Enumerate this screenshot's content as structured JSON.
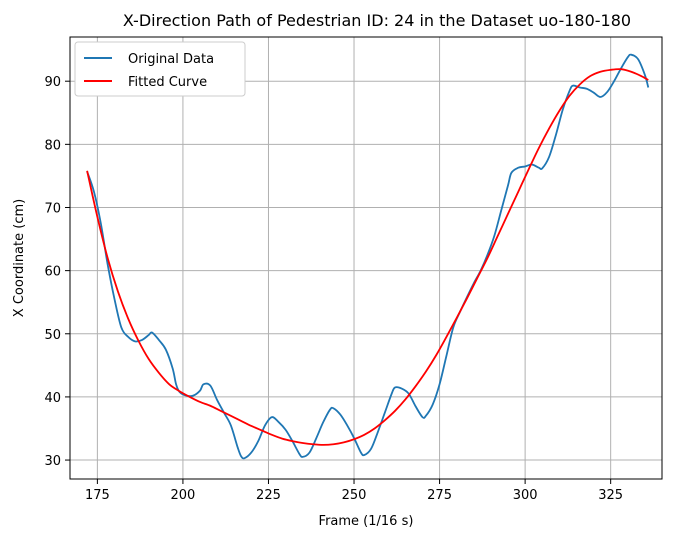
{
  "chart_data": {
    "type": "line",
    "title": "X-Direction Path of Pedestrian ID: 24 in the Dataset uo-180-180",
    "xlabel": "Frame (1/16 s)",
    "ylabel": "X Coordinate (cm)",
    "xlim": [
      167,
      340
    ],
    "ylim": [
      27,
      97
    ],
    "xticks": [
      175,
      200,
      225,
      250,
      275,
      300,
      325
    ],
    "yticks": [
      30,
      40,
      50,
      60,
      70,
      80,
      90
    ],
    "grid": true,
    "legend_position": "upper-left",
    "series": [
      {
        "name": "Original Data",
        "color": "#1f77b4",
        "points": [
          [
            172,
            75.7
          ],
          [
            174,
            72.5
          ],
          [
            176,
            67.5
          ],
          [
            178,
            61.0
          ],
          [
            180,
            55.5
          ],
          [
            182,
            51.0
          ],
          [
            184,
            49.5
          ],
          [
            186,
            48.8
          ],
          [
            188,
            49.0
          ],
          [
            190,
            49.8
          ],
          [
            191,
            50.2
          ],
          [
            193,
            49.0
          ],
          [
            195,
            47.5
          ],
          [
            197,
            44.5
          ],
          [
            198,
            42.0
          ],
          [
            199,
            40.8
          ],
          [
            201,
            40.2
          ],
          [
            203,
            40.2
          ],
          [
            205,
            41.0
          ],
          [
            206,
            42.0
          ],
          [
            208,
            41.8
          ],
          [
            210,
            39.5
          ],
          [
            212,
            37.5
          ],
          [
            214,
            35.5
          ],
          [
            216,
            32.0
          ],
          [
            217,
            30.6
          ],
          [
            218,
            30.3
          ],
          [
            220,
            31.2
          ],
          [
            222,
            33.0
          ],
          [
            224,
            35.5
          ],
          [
            226,
            36.8
          ],
          [
            228,
            36.0
          ],
          [
            230,
            34.8
          ],
          [
            232,
            33.0
          ],
          [
            234,
            31.0
          ],
          [
            235,
            30.5
          ],
          [
            237,
            31.2
          ],
          [
            239,
            33.5
          ],
          [
            241,
            36.0
          ],
          [
            243,
            38.0
          ],
          [
            244,
            38.2
          ],
          [
            246,
            37.2
          ],
          [
            248,
            35.5
          ],
          [
            250,
            33.5
          ],
          [
            252,
            31.2
          ],
          [
            253,
            30.8
          ],
          [
            255,
            31.8
          ],
          [
            257,
            34.5
          ],
          [
            259,
            37.5
          ],
          [
            261,
            40.5
          ],
          [
            262,
            41.5
          ],
          [
            264,
            41.3
          ],
          [
            266,
            40.5
          ],
          [
            268,
            38.5
          ],
          [
            270,
            36.8
          ],
          [
            271,
            37.0
          ],
          [
            273,
            38.8
          ],
          [
            275,
            42.0
          ],
          [
            277,
            46.5
          ],
          [
            279,
            51.0
          ],
          [
            281,
            53.5
          ],
          [
            283,
            55.8
          ],
          [
            285,
            58.0
          ],
          [
            287,
            60.0
          ],
          [
            289,
            62.5
          ],
          [
            291,
            65.5
          ],
          [
            293,
            69.5
          ],
          [
            295,
            73.5
          ],
          [
            296,
            75.5
          ],
          [
            298,
            76.3
          ],
          [
            300,
            76.5
          ],
          [
            302,
            76.8
          ],
          [
            304,
            76.3
          ],
          [
            305,
            76.2
          ],
          [
            307,
            78.0
          ],
          [
            309,
            81.5
          ],
          [
            311,
            85.5
          ],
          [
            313,
            88.5
          ],
          [
            314,
            89.3
          ],
          [
            316,
            89.0
          ],
          [
            318,
            88.8
          ],
          [
            320,
            88.2
          ],
          [
            322,
            87.5
          ],
          [
            324,
            88.3
          ],
          [
            326,
            90.0
          ],
          [
            328,
            92.0
          ],
          [
            330,
            93.8
          ],
          [
            331,
            94.2
          ],
          [
            333,
            93.5
          ],
          [
            335,
            91.0
          ],
          [
            336,
            89.0
          ]
        ]
      },
      {
        "name": "Fitted Curve",
        "color": "#ff0000",
        "points": [
          [
            172,
            75.8
          ],
          [
            175,
            68.5
          ],
          [
            178,
            62.0
          ],
          [
            181,
            56.7
          ],
          [
            184,
            52.4
          ],
          [
            187,
            48.9
          ],
          [
            190,
            46.0
          ],
          [
            193,
            43.8
          ],
          [
            196,
            42.0
          ],
          [
            199,
            40.9
          ],
          [
            202,
            40.0
          ],
          [
            205,
            39.2
          ],
          [
            208,
            38.6
          ],
          [
            211,
            37.8
          ],
          [
            214,
            37.0
          ],
          [
            217,
            36.2
          ],
          [
            220,
            35.4
          ],
          [
            223,
            34.7
          ],
          [
            226,
            34.0
          ],
          [
            229,
            33.4
          ],
          [
            232,
            33.0
          ],
          [
            235,
            32.7
          ],
          [
            238,
            32.5
          ],
          [
            241,
            32.4
          ],
          [
            244,
            32.5
          ],
          [
            247,
            32.8
          ],
          [
            250,
            33.3
          ],
          [
            253,
            34.0
          ],
          [
            256,
            35.0
          ],
          [
            259,
            36.3
          ],
          [
            262,
            37.8
          ],
          [
            265,
            39.6
          ],
          [
            268,
            41.7
          ],
          [
            271,
            44.0
          ],
          [
            274,
            46.6
          ],
          [
            277,
            49.5
          ],
          [
            280,
            52.5
          ],
          [
            283,
            55.6
          ],
          [
            286,
            58.8
          ],
          [
            289,
            62.0
          ],
          [
            292,
            65.5
          ],
          [
            295,
            69.0
          ],
          [
            298,
            72.5
          ],
          [
            301,
            76.0
          ],
          [
            304,
            79.4
          ],
          [
            307,
            82.5
          ],
          [
            310,
            85.3
          ],
          [
            313,
            87.7
          ],
          [
            316,
            89.5
          ],
          [
            319,
            90.8
          ],
          [
            322,
            91.5
          ],
          [
            325,
            91.8
          ],
          [
            328,
            91.9
          ],
          [
            331,
            91.5
          ],
          [
            334,
            90.8
          ],
          [
            336,
            90.2
          ]
        ]
      }
    ]
  }
}
